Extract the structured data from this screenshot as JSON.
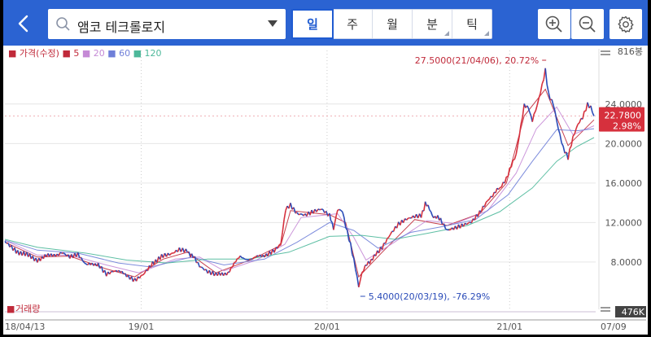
{
  "header": {
    "search_value": "앰코 테크롤로지",
    "tabs": [
      {
        "label": "일",
        "active": true,
        "submenu": false
      },
      {
        "label": "주",
        "active": false,
        "submenu": false
      },
      {
        "label": "월",
        "active": false,
        "submenu": false
      },
      {
        "label": "분",
        "active": false,
        "submenu": true
      },
      {
        "label": "틱",
        "active": false,
        "submenu": true
      }
    ],
    "icons": [
      "back-icon",
      "search-icon",
      "dropdown-icon",
      "zoom-in-icon",
      "zoom-out-icon",
      "gear-icon"
    ]
  },
  "legend": {
    "price_label": "가격(수정)",
    "ma": [
      {
        "label": "5",
        "color": "#c02a3a"
      },
      {
        "label": "20",
        "color": "#c58ad6"
      },
      {
        "label": "60",
        "color": "#6f7fd8"
      },
      {
        "label": "120",
        "color": "#4db89a"
      }
    ],
    "volume_label": "거래량"
  },
  "colors": {
    "accent": "#2b63d2",
    "up": "#d6303d",
    "down": "#2a4bb8",
    "current": "#d6303d"
  },
  "chart_data": {
    "type": "candlestick-line",
    "x_ticks": [
      "18/04/13",
      "19/01",
      "20/01",
      "21/01",
      "07/09"
    ],
    "y_ticks": [
      "24.0000",
      "20.0000",
      "16.0000",
      "12.0000",
      "8.0000"
    ],
    "ylim": [
      4.2,
      28.6
    ],
    "y_top_label": "816봉",
    "volume_label": "476K",
    "current": {
      "price": "22.7800",
      "change": "2.98%"
    },
    "annotations": {
      "high": "27.5000(21/04/06), 20.72%",
      "low": "5.4000(20/03/19), -76.29%"
    },
    "price_series": [
      [
        0,
        10.1
      ],
      [
        12,
        9.3
      ],
      [
        25,
        8.7
      ],
      [
        40,
        8.3
      ],
      [
        55,
        8.6
      ],
      [
        70,
        9.0
      ],
      [
        80,
        8.5
      ],
      [
        90,
        8.7
      ],
      [
        100,
        7.6
      ],
      [
        115,
        7.9
      ],
      [
        125,
        6.9
      ],
      [
        135,
        7.2
      ],
      [
        150,
        6.6
      ],
      [
        160,
        6.2
      ],
      [
        170,
        6.8
      ],
      [
        182,
        8.0
      ],
      [
        195,
        8.5
      ],
      [
        205,
        8.7
      ],
      [
        215,
        9.2
      ],
      [
        225,
        9.1
      ],
      [
        232,
        8.6
      ],
      [
        240,
        7.5
      ],
      [
        250,
        6.9
      ],
      [
        260,
        6.6
      ],
      [
        275,
        7.0
      ],
      [
        290,
        8.5
      ],
      [
        305,
        8.3
      ],
      [
        320,
        8.7
      ],
      [
        332,
        9.3
      ],
      [
        340,
        10.0
      ],
      [
        346,
        13.5
      ],
      [
        352,
        13.9
      ],
      [
        360,
        13.0
      ],
      [
        370,
        12.8
      ],
      [
        380,
        13.1
      ],
      [
        390,
        13.3
      ],
      [
        400,
        12.6
      ],
      [
        405,
        11.5
      ],
      [
        410,
        13.2
      ],
      [
        416,
        13.0
      ],
      [
        420,
        11.5
      ],
      [
        426,
        9.6
      ],
      [
        432,
        7.3
      ],
      [
        436,
        5.4
      ],
      [
        440,
        6.8
      ],
      [
        446,
        7.8
      ],
      [
        455,
        8.6
      ],
      [
        465,
        9.4
      ],
      [
        475,
        10.7
      ],
      [
        485,
        11.7
      ],
      [
        495,
        12.2
      ],
      [
        505,
        12.5
      ],
      [
        513,
        12.6
      ],
      [
        518,
        14.0
      ],
      [
        525,
        13.0
      ],
      [
        530,
        12.5
      ],
      [
        537,
        12.3
      ],
      [
        545,
        11.3
      ],
      [
        555,
        11.6
      ],
      [
        565,
        11.9
      ],
      [
        575,
        12.2
      ],
      [
        585,
        13.1
      ],
      [
        595,
        14.3
      ],
      [
        603,
        14.9
      ],
      [
        610,
        15.5
      ],
      [
        618,
        16.5
      ],
      [
        624,
        17.9
      ],
      [
        630,
        19.0
      ],
      [
        636,
        22.0
      ],
      [
        640,
        24.0
      ],
      [
        645,
        23.5
      ],
      [
        650,
        22.5
      ],
      [
        656,
        24.0
      ],
      [
        662,
        26.0
      ],
      [
        666,
        27.5
      ],
      [
        670,
        25.0
      ],
      [
        676,
        24.0
      ],
      [
        682,
        21.5
      ],
      [
        688,
        19.5
      ],
      [
        694,
        18.5
      ],
      [
        700,
        20.5
      ],
      [
        706,
        21.8
      ],
      [
        712,
        22.5
      ],
      [
        718,
        23.8
      ],
      [
        722,
        23.5
      ],
      [
        726,
        22.78
      ]
    ],
    "ma_series": [
      {
        "name": "5",
        "points": [
          [
            0,
            10.0
          ],
          [
            40,
            8.5
          ],
          [
            80,
            8.6
          ],
          [
            125,
            7.3
          ],
          [
            160,
            6.5
          ],
          [
            195,
            8.3
          ],
          [
            225,
            9.0
          ],
          [
            260,
            6.9
          ],
          [
            305,
            8.3
          ],
          [
            340,
            9.7
          ],
          [
            352,
            13.2
          ],
          [
            400,
            12.8
          ],
          [
            420,
            12.0
          ],
          [
            436,
            6.5
          ],
          [
            465,
            9.0
          ],
          [
            505,
            12.3
          ],
          [
            545,
            11.7
          ],
          [
            585,
            12.9
          ],
          [
            618,
            16.0
          ],
          [
            640,
            22.8
          ],
          [
            666,
            25.5
          ],
          [
            694,
            19.8
          ],
          [
            726,
            22.4
          ]
        ]
      },
      {
        "name": "20",
        "points": [
          [
            0,
            10.2
          ],
          [
            40,
            8.7
          ],
          [
            80,
            8.7
          ],
          [
            125,
            7.7
          ],
          [
            165,
            6.9
          ],
          [
            210,
            8.3
          ],
          [
            240,
            8.5
          ],
          [
            270,
            7.1
          ],
          [
            310,
            8.2
          ],
          [
            345,
            9.8
          ],
          [
            365,
            12.5
          ],
          [
            410,
            12.9
          ],
          [
            430,
            10.5
          ],
          [
            445,
            8.2
          ],
          [
            480,
            10.0
          ],
          [
            520,
            12.2
          ],
          [
            555,
            11.9
          ],
          [
            595,
            13.2
          ],
          [
            630,
            17.0
          ],
          [
            655,
            21.5
          ],
          [
            680,
            23.7
          ],
          [
            700,
            20.9
          ],
          [
            726,
            21.8
          ]
        ]
      },
      {
        "name": "60",
        "points": [
          [
            0,
            10.2
          ],
          [
            40,
            9.2
          ],
          [
            90,
            8.9
          ],
          [
            140,
            7.9
          ],
          [
            180,
            7.5
          ],
          [
            230,
            8.5
          ],
          [
            270,
            7.7
          ],
          [
            320,
            8.3
          ],
          [
            360,
            10.0
          ],
          [
            400,
            12.0
          ],
          [
            430,
            11.2
          ],
          [
            460,
            9.4
          ],
          [
            500,
            11.0
          ],
          [
            540,
            11.6
          ],
          [
            580,
            12.3
          ],
          [
            620,
            14.8
          ],
          [
            650,
            18.2
          ],
          [
            680,
            21.4
          ],
          [
            705,
            21.3
          ],
          [
            726,
            21.5
          ]
        ]
      },
      {
        "name": "120",
        "points": [
          [
            0,
            10.3
          ],
          [
            40,
            9.5
          ],
          [
            100,
            8.9
          ],
          [
            150,
            8.2
          ],
          [
            200,
            7.9
          ],
          [
            250,
            8.3
          ],
          [
            300,
            8.3
          ],
          [
            350,
            9.0
          ],
          [
            400,
            10.6
          ],
          [
            440,
            10.7
          ],
          [
            480,
            10.3
          ],
          [
            520,
            10.9
          ],
          [
            570,
            11.7
          ],
          [
            610,
            13.1
          ],
          [
            650,
            15.5
          ],
          [
            680,
            18.2
          ],
          [
            705,
            19.7
          ],
          [
            726,
            20.6
          ]
        ]
      }
    ]
  }
}
